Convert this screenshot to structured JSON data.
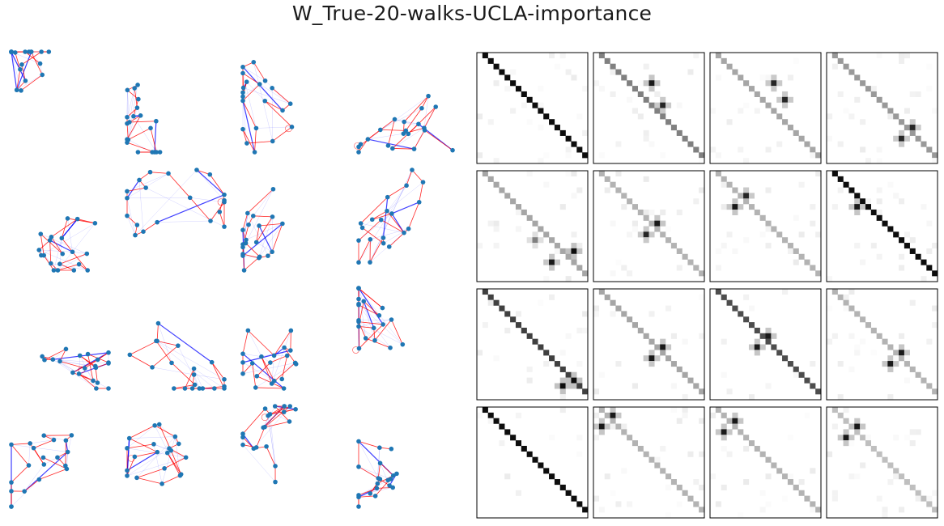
{
  "figure": {
    "title": "W_True-20-walks-UCLA-importance"
  },
  "colors": {
    "node": "#1f77b4",
    "walk_edge": "#ff0000",
    "extra_edge": "#0000ff",
    "matrix_frame": "#000000",
    "matrix_background": "#ffffff"
  },
  "graph_panels": {
    "rows": 4,
    "cols": 4,
    "nodes_per_graph": 20,
    "edge_types": [
      "walk-edge",
      "extra-edge",
      "self-loop"
    ]
  },
  "matrix_panels": {
    "rows": 4,
    "cols": 4,
    "size": 20,
    "colormap": "gray_r",
    "variants": [
      [
        {
          "off": 1,
          "diag": 0.95,
          "spots": []
        },
        {
          "off": 1,
          "diag": 0.5,
          "spots": [
            [
              5,
              10,
              0.9
            ],
            [
              9,
              12,
              0.85
            ]
          ]
        },
        {
          "off": 1,
          "diag": 0.35,
          "spots": [
            [
              5,
              11,
              0.85
            ],
            [
              8,
              13,
              0.85
            ]
          ]
        },
        {
          "off": 1,
          "diag": 0.4,
          "spots": [
            [
              13,
              15,
              0.85
            ],
            [
              15,
              13,
              0.85
            ]
          ]
        }
      ],
      [
        {
          "off": 1,
          "diag": 0.35,
          "spots": [
            [
              14,
              17,
              0.95
            ],
            [
              16,
              13,
              0.9
            ],
            [
              12,
              10,
              0.5
            ]
          ]
        },
        {
          "off": 1,
          "diag": 0.3,
          "spots": [
            [
              9,
              11,
              0.9
            ],
            [
              11,
              9,
              0.85
            ]
          ]
        },
        {
          "off": 1,
          "diag": 0.3,
          "spots": [
            [
              6,
              4,
              0.9
            ],
            [
              4,
              6,
              0.85
            ]
          ]
        },
        {
          "off": 1,
          "diag": 0.95,
          "spots": [
            [
              6,
              5,
              0.9
            ]
          ]
        }
      ],
      [
        {
          "off": 1,
          "diag": 0.75,
          "spots": [
            [
              16,
              17,
              0.95
            ],
            [
              17,
              15,
              0.95
            ]
          ]
        },
        {
          "off": 1,
          "diag": 0.35,
          "spots": [
            [
              10,
              12,
              0.9
            ],
            [
              12,
              10,
              0.9
            ]
          ]
        },
        {
          "off": 1,
          "diag": 0.7,
          "spots": [
            [
              8,
              10,
              0.9
            ],
            [
              10,
              8,
              0.9
            ]
          ]
        },
        {
          "off": 1,
          "diag": 0.3,
          "spots": [
            [
              11,
              13,
              0.9
            ],
            [
              13,
              11,
              0.9
            ]
          ]
        }
      ],
      [
        {
          "off": 1,
          "diag": 0.95,
          "spots": []
        },
        {
          "off": 1,
          "diag": 0.3,
          "spots": [
            [
              3,
              1,
              0.9
            ],
            [
              1,
              3,
              0.9
            ]
          ]
        },
        {
          "off": 1,
          "diag": 0.3,
          "spots": [
            [
              4,
              2,
              0.9
            ],
            [
              2,
              4,
              0.9
            ]
          ]
        },
        {
          "off": 1,
          "diag": 0.25,
          "spots": [
            [
              5,
              3,
              0.9
            ],
            [
              3,
              5,
              0.9
            ]
          ]
        }
      ]
    ]
  }
}
